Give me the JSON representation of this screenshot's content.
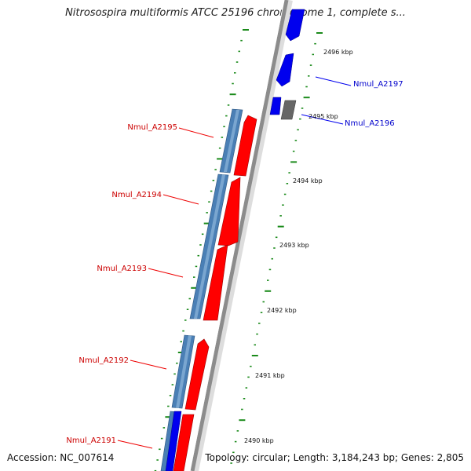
{
  "title": "Nitrosospira multiformis ATCC 25196 chromosome 1, complete s...",
  "accession": "Accession: NC_007614",
  "summary": "Topology: circular; Length: 3,184,243 bp; Genes: 2,805",
  "colors": {
    "backbone": "#8c8c8c",
    "forward_gene": "#ff0000",
    "reverse_gene": "#4a7fb5",
    "highlight_gene": "#0000ee",
    "other_gene": "#666666",
    "tick": "#1a8a1a",
    "label_red": "#cc0000",
    "label_blue": "#0000cc"
  },
  "scale_labels": [
    "2496 kbp",
    "2495 kbp",
    "2494 kbp",
    "2493 kbp",
    "2492 kbp",
    "2491 kbp",
    "2490 kbp"
  ],
  "gene_labels_left": [
    "Nmul_A2195",
    "Nmul_A2194",
    "Nmul_A2193",
    "Nmul_A2192",
    "Nmul_A2191"
  ],
  "gene_labels_right": [
    "Nmul_A2197",
    "Nmul_A2196"
  ]
}
